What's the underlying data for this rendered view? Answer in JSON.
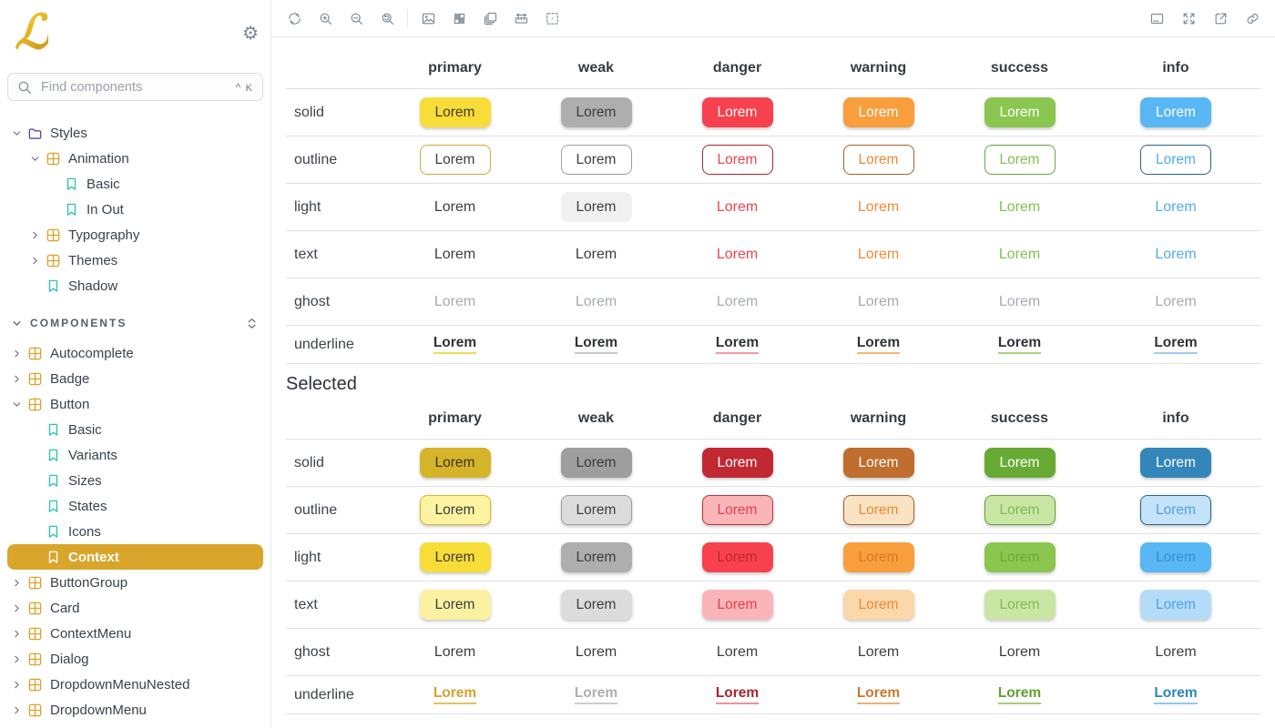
{
  "sidebar": {
    "logo_glyph": "ℒ",
    "search": {
      "placeholder": "Find components",
      "shortcut_mod": "^",
      "shortcut_key": "K"
    },
    "styles_tree": [
      {
        "label": "Styles",
        "icon": "folder",
        "chevron": "down",
        "level": 0
      },
      {
        "label": "Animation",
        "icon": "grid",
        "chevron": "down",
        "level": 1
      },
      {
        "label": "Basic",
        "icon": "bookmark",
        "chevron": "none",
        "level": 2
      },
      {
        "label": "In Out",
        "icon": "bookmark",
        "chevron": "none",
        "level": 2
      },
      {
        "label": "Typography",
        "icon": "grid",
        "chevron": "right",
        "level": 1
      },
      {
        "label": "Themes",
        "icon": "grid",
        "chevron": "right",
        "level": 1
      },
      {
        "label": "Shadow",
        "icon": "bookmark",
        "chevron": "none",
        "level": 1
      }
    ],
    "components_header": {
      "label": "COMPONENTS"
    },
    "components_tree": [
      {
        "label": "Autocomplete",
        "icon": "grid",
        "chevron": "right",
        "level": 0
      },
      {
        "label": "Badge",
        "icon": "grid",
        "chevron": "right",
        "level": 0
      },
      {
        "label": "Button",
        "icon": "grid",
        "chevron": "down",
        "level": 0
      },
      {
        "label": "Basic",
        "icon": "bookmark",
        "chevron": "none",
        "level": 1
      },
      {
        "label": "Variants",
        "icon": "bookmark",
        "chevron": "none",
        "level": 1
      },
      {
        "label": "Sizes",
        "icon": "bookmark",
        "chevron": "none",
        "level": 1
      },
      {
        "label": "States",
        "icon": "bookmark",
        "chevron": "none",
        "level": 1
      },
      {
        "label": "Icons",
        "icon": "bookmark",
        "chevron": "none",
        "level": 1
      },
      {
        "label": "Context",
        "icon": "bookmark",
        "chevron": "none",
        "level": 1,
        "selected": true
      },
      {
        "label": "ButtonGroup",
        "icon": "grid",
        "chevron": "right",
        "level": 0
      },
      {
        "label": "Card",
        "icon": "grid",
        "chevron": "right",
        "level": 0
      },
      {
        "label": "ContextMenu",
        "icon": "grid",
        "chevron": "right",
        "level": 0
      },
      {
        "label": "Dialog",
        "icon": "grid",
        "chevron": "right",
        "level": 0
      },
      {
        "label": "DropdownMenuNested",
        "icon": "grid",
        "chevron": "right",
        "level": 0
      },
      {
        "label": "DropdownMenu",
        "icon": "grid",
        "chevron": "right",
        "level": 0
      }
    ],
    "colors": {
      "accent": "#d9a62b",
      "selected_bg": "#d9a62b",
      "selected_fg": "#ffffff",
      "folder_icon": "#5b4aa8",
      "grid_icon": "#dba32c",
      "bookmark_icon": "#2fc3b6",
      "toolbar_icon": "#7b8794"
    }
  },
  "toolbar": {
    "left_icons": [
      "refresh-icon",
      "zoom-in-icon",
      "zoom-out-icon",
      "zoom-reset-icon"
    ],
    "center_icons": [
      "background-icon",
      "grid-icon",
      "layers-icon",
      "width-icon",
      "outline-icon"
    ],
    "right_icons": [
      "addon-panel-icon",
      "fullscreen-icon",
      "open-new-tab-icon",
      "copy-link-icon"
    ]
  },
  "story": {
    "columns": [
      "primary",
      "weak",
      "danger",
      "warning",
      "success",
      "info"
    ],
    "rows": [
      "solid",
      "outline",
      "light",
      "text",
      "ghost",
      "underline"
    ],
    "sections": [
      {
        "title": "",
        "cells": [
          [
            {
              "label": "Lorem",
              "kind": "button",
              "bg": "#f8dc38",
              "fg": "#413d22"
            },
            {
              "label": "Lorem",
              "kind": "button",
              "bg": "#aeaeae",
              "fg": "#3d3d3d"
            },
            {
              "label": "Lorem",
              "kind": "button",
              "bg": "#f8414f",
              "fg": "#ffffff"
            },
            {
              "label": "Lorem",
              "kind": "button",
              "bg": "#f99e3d",
              "fg": "#ffffff"
            },
            {
              "label": "Lorem",
              "kind": "button",
              "bg": "#8ac650",
              "fg": "#ffffff"
            },
            {
              "label": "Lorem",
              "kind": "button",
              "bg": "#58b7f4",
              "fg": "#ffffff"
            }
          ],
          [
            {
              "label": "Lorem",
              "kind": "button",
              "bg": "#ffffff",
              "border": "#d9a62b",
              "fg": "#3d3d3d",
              "flat": true
            },
            {
              "label": "Lorem",
              "kind": "button",
              "bg": "#ffffff",
              "border": "#9e9e9e",
              "fg": "#3d3d3d",
              "flat": true
            },
            {
              "label": "Lorem",
              "kind": "button",
              "bg": "#ffffff",
              "border": "#a7242d",
              "fg": "#ee4350",
              "flat": true
            },
            {
              "label": "Lorem",
              "kind": "button",
              "bg": "#ffffff",
              "border": "#a4632a",
              "fg": "#ee8a35",
              "flat": true
            },
            {
              "label": "Lorem",
              "kind": "button",
              "bg": "#ffffff",
              "border": "#67a33c",
              "fg": "#84c052",
              "flat": true
            },
            {
              "label": "Lorem",
              "kind": "button",
              "bg": "#ffffff",
              "border": "#25658a",
              "fg": "#52acec",
              "flat": true
            }
          ],
          [
            {
              "label": "Lorem",
              "kind": "text",
              "fg": "#3d3d3d"
            },
            {
              "label": "Lorem",
              "kind": "button",
              "bg": "#f0f0f0",
              "fg": "#3d3d3d",
              "flat": true
            },
            {
              "label": "Lorem",
              "kind": "text",
              "fg": "#ee4350"
            },
            {
              "label": "Lorem",
              "kind": "text",
              "fg": "#ee8a35"
            },
            {
              "label": "Lorem",
              "kind": "text",
              "fg": "#84c052"
            },
            {
              "label": "Lorem",
              "kind": "text",
              "fg": "#52acec"
            }
          ],
          [
            {
              "label": "Lorem",
              "kind": "text",
              "fg": "#3d3d3d"
            },
            {
              "label": "Lorem",
              "kind": "text",
              "fg": "#3d3d3d"
            },
            {
              "label": "Lorem",
              "kind": "text",
              "fg": "#ee4350"
            },
            {
              "label": "Lorem",
              "kind": "text",
              "fg": "#ee8a35"
            },
            {
              "label": "Lorem",
              "kind": "text",
              "fg": "#84c052"
            },
            {
              "label": "Lorem",
              "kind": "text",
              "fg": "#52acec"
            }
          ],
          [
            {
              "label": "Lorem",
              "kind": "text",
              "fg": "#a6abb0"
            },
            {
              "label": "Lorem",
              "kind": "text",
              "fg": "#a6abb0"
            },
            {
              "label": "Lorem",
              "kind": "text",
              "fg": "#a6abb0"
            },
            {
              "label": "Lorem",
              "kind": "text",
              "fg": "#a6abb0"
            },
            {
              "label": "Lorem",
              "kind": "text",
              "fg": "#a6abb0"
            },
            {
              "label": "Lorem",
              "kind": "text",
              "fg": "#a6abb0"
            }
          ],
          [
            {
              "label": "Lorem",
              "kind": "underline",
              "fg": "#2f3237",
              "ul": "#f3dc4e"
            },
            {
              "label": "Lorem",
              "kind": "underline",
              "fg": "#2f3237",
              "ul": "#c9c9c9"
            },
            {
              "label": "Lorem",
              "kind": "underline",
              "fg": "#2f3237",
              "ul": "#f59aa0"
            },
            {
              "label": "Lorem",
              "kind": "underline",
              "fg": "#2f3237",
              "ul": "#f6b871"
            },
            {
              "label": "Lorem",
              "kind": "underline",
              "fg": "#2f3237",
              "ul": "#abd37f"
            },
            {
              "label": "Lorem",
              "kind": "underline",
              "fg": "#2f3237",
              "ul": "#9fccf1"
            }
          ]
        ]
      },
      {
        "title": "Selected",
        "cells": [
          [
            {
              "label": "Lorem",
              "kind": "button",
              "bg": "#d6b42a",
              "fg": "#3b3312"
            },
            {
              "label": "Lorem",
              "kind": "button",
              "bg": "#9e9e9e",
              "fg": "#3d3d3d"
            },
            {
              "label": "Lorem",
              "kind": "button",
              "bg": "#c22832",
              "fg": "#ffffff"
            },
            {
              "label": "Lorem",
              "kind": "button",
              "bg": "#c06e2d",
              "fg": "#ffffff"
            },
            {
              "label": "Lorem",
              "kind": "button",
              "bg": "#68ab34",
              "fg": "#ffffff"
            },
            {
              "label": "Lorem",
              "kind": "button",
              "bg": "#3486ba",
              "fg": "#ffffff"
            }
          ],
          [
            {
              "label": "Lorem",
              "kind": "button",
              "bg": "#fbf3a0",
              "border": "#d9b62b",
              "fg": "#3d3d3d"
            },
            {
              "label": "Lorem",
              "kind": "button",
              "bg": "#dcdcdc",
              "border": "#9e9e9e",
              "fg": "#3d3d3d"
            },
            {
              "label": "Lorem",
              "kind": "button",
              "bg": "#fab5b9",
              "border": "#c2303a",
              "fg": "#e4414d"
            },
            {
              "label": "Lorem",
              "kind": "button",
              "bg": "#fae3c3",
              "border": "#a4632a",
              "fg": "#ea8a34"
            },
            {
              "label": "Lorem",
              "kind": "button",
              "bg": "#c9e6a4",
              "border": "#67a33c",
              "fg": "#7fb956"
            },
            {
              "label": "Lorem",
              "kind": "button",
              "bg": "#c4e2f8",
              "border": "#25658a",
              "fg": "#4ba3e2"
            }
          ],
          [
            {
              "label": "Lorem",
              "kind": "button",
              "bg": "#f8dc38",
              "fg": "#3d3d3d"
            },
            {
              "label": "Lorem",
              "kind": "button",
              "bg": "#aeaeae",
              "fg": "#3d3d3d"
            },
            {
              "label": "Lorem",
              "kind": "button",
              "bg": "#f8414f",
              "fg": "#bf2831"
            },
            {
              "label": "Lorem",
              "kind": "button",
              "bg": "#f99e3d",
              "fg": "#d27c23"
            },
            {
              "label": "Lorem",
              "kind": "button",
              "bg": "#8ac650",
              "fg": "#6da83c"
            },
            {
              "label": "Lorem",
              "kind": "button",
              "bg": "#58b7f4",
              "fg": "#3a90cc"
            }
          ],
          [
            {
              "label": "Lorem",
              "kind": "button",
              "bg": "#faf1a2",
              "fg": "#3d3d3d"
            },
            {
              "label": "Lorem",
              "kind": "button",
              "bg": "#dcdcdc",
              "fg": "#3d3d3d"
            },
            {
              "label": "Lorem",
              "kind": "button",
              "bg": "#fab5b9",
              "fg": "#e4414d"
            },
            {
              "label": "Lorem",
              "kind": "button",
              "bg": "#fad8a9",
              "fg": "#ea8a34"
            },
            {
              "label": "Lorem",
              "kind": "button",
              "bg": "#c9e6a4",
              "fg": "#85b95b"
            },
            {
              "label": "Lorem",
              "kind": "button",
              "bg": "#b4dcf8",
              "fg": "#4ba3e2"
            }
          ],
          [
            {
              "label": "Lorem",
              "kind": "text",
              "fg": "#3d3d3d"
            },
            {
              "label": "Lorem",
              "kind": "text",
              "fg": "#3d3d3d"
            },
            {
              "label": "Lorem",
              "kind": "text",
              "fg": "#3d3d3d"
            },
            {
              "label": "Lorem",
              "kind": "text",
              "fg": "#3d3d3d"
            },
            {
              "label": "Lorem",
              "kind": "text",
              "fg": "#3d3d3d"
            },
            {
              "label": "Lorem",
              "kind": "text",
              "fg": "#3d3d3d"
            }
          ],
          [
            {
              "label": "Lorem",
              "kind": "underline",
              "fg": "#d3a32a",
              "ul": "#e2c35c"
            },
            {
              "label": "Lorem",
              "kind": "underline",
              "fg": "#aeaeae",
              "ul": "#cccccc"
            },
            {
              "label": "Lorem",
              "kind": "underline",
              "fg": "#a8232c",
              "ul": "#ef9096"
            },
            {
              "label": "Lorem",
              "kind": "underline",
              "fg": "#c9792f",
              "ul": "#eab277"
            },
            {
              "label": "Lorem",
              "kind": "underline",
              "fg": "#61a030",
              "ul": "#a2ce77"
            },
            {
              "label": "Lorem",
              "kind": "underline",
              "fg": "#2d85b9",
              "ul": "#8ec8ef"
            }
          ]
        ]
      }
    ]
  }
}
